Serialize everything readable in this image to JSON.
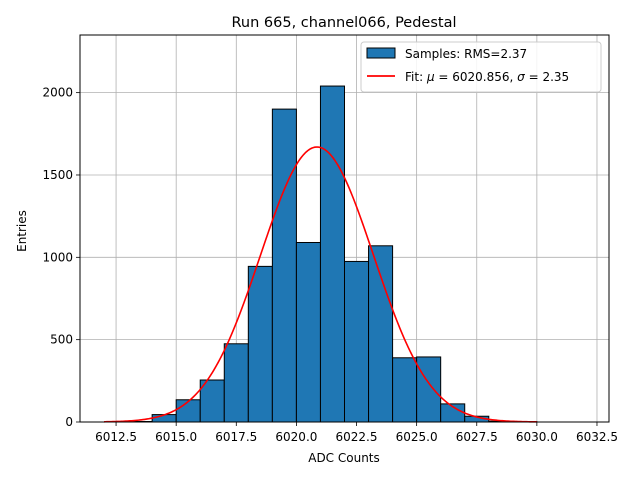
{
  "chart_data": {
    "type": "bar",
    "title": "Run 665, channel066, Pedestal",
    "xlabel": "ADC Counts",
    "ylabel": "Entries",
    "xlim": [
      6011.0,
      6033.0
    ],
    "ylim": [
      0,
      2350
    ],
    "grid": true,
    "legend_position": "top-right",
    "xticks": [
      6012.5,
      6015.0,
      6017.5,
      6020.0,
      6022.5,
      6025.0,
      6027.5,
      6030.0,
      6032.5
    ],
    "xtick_labels": [
      "6012.5",
      "6015.0",
      "6017.5",
      "6020.0",
      "6022.5",
      "6025.0",
      "6027.5",
      "6030.0",
      "6032.5"
    ],
    "yticks": [
      0,
      500,
      1000,
      1500,
      2000
    ],
    "ytick_labels": [
      "0",
      "500",
      "1000",
      "1500",
      "2000"
    ],
    "histogram": {
      "name": "Samples: RMS=2.37",
      "color": "#1f77b4",
      "edge_color": "#000000",
      "bin_edges": [
        6013,
        6014,
        6015,
        6016,
        6017,
        6018,
        6019,
        6020,
        6021,
        6022,
        6023,
        6024,
        6025,
        6026,
        6027,
        6028,
        6029,
        6030,
        6031,
        6032
      ],
      "counts": [
        3,
        45,
        135,
        255,
        475,
        945,
        1900,
        1090,
        2040,
        975,
        1070,
        390,
        395,
        110,
        35,
        5,
        2,
        0,
        0
      ]
    },
    "fit": {
      "name": "Fit: μ = 6020.856, σ = 2.35",
      "legend_prefix": "Fit: ",
      "mu_symbol": "μ",
      "mu_text": " = 6020.856, ",
      "sigma_symbol": "σ",
      "sigma_text": " = 2.35",
      "color": "#ff0000",
      "mu": 6020.856,
      "sigma": 2.35,
      "amplitude": 1670,
      "x_range": [
        6012.0,
        6030.0
      ]
    }
  }
}
